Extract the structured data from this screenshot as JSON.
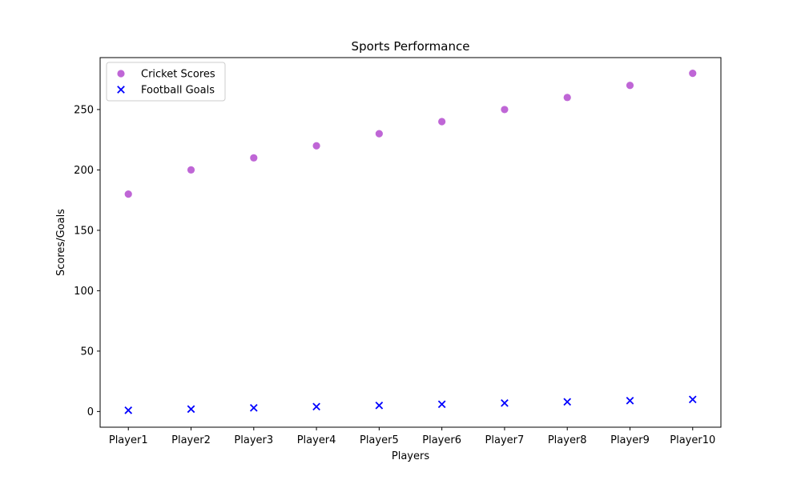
{
  "chart_data": {
    "type": "scatter",
    "title": "Sports Performance",
    "xlabel": "Players",
    "ylabel": "Scores/Goals",
    "categories": [
      "Player1",
      "Player2",
      "Player3",
      "Player4",
      "Player5",
      "Player6",
      "Player7",
      "Player8",
      "Player9",
      "Player10"
    ],
    "ylim": [
      -13,
      293
    ],
    "yticks": [
      0,
      50,
      100,
      150,
      200,
      250
    ],
    "grid": false,
    "legend_position": "top-left",
    "series": [
      {
        "name": "Cricket Scores",
        "marker": "circle",
        "color": "#bf66d6",
        "values": [
          180,
          200,
          210,
          220,
          230,
          240,
          250,
          260,
          270,
          280
        ]
      },
      {
        "name": "Football Goals",
        "marker": "x",
        "color": "#0000ff",
        "values": [
          1,
          2,
          3,
          4,
          5,
          6,
          7,
          8,
          9,
          10
        ]
      }
    ]
  }
}
